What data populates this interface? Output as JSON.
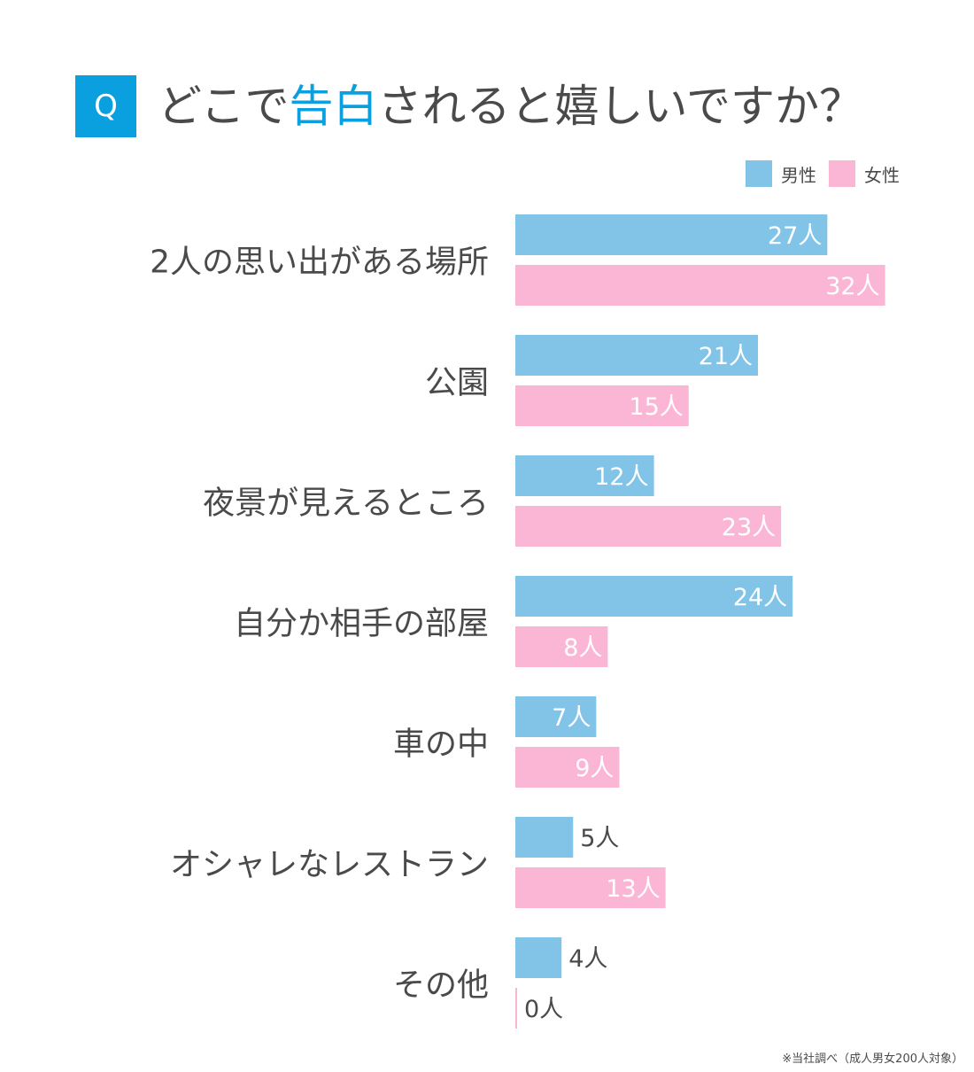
{
  "header": {
    "badge": "Q",
    "title_before": "どこで",
    "title_highlight": "告白",
    "title_after": "されると嬉しいですか？"
  },
  "legend": [
    {
      "label": "男性",
      "color": "#82c4e8"
    },
    {
      "label": "女性",
      "color": "#fbb6d6"
    }
  ],
  "footnote": "※当社調べ（成人男女200人対象）",
  "colors": {
    "accent": "#0aa0e0",
    "text": "#4a4a4a",
    "male": "#82c4e8",
    "female": "#fbb6d6"
  },
  "chart_data": {
    "type": "bar",
    "orientation": "horizontal",
    "unit": "人",
    "categories": [
      "2人の思い出がある場所",
      "公園",
      "夜景が見えるところ",
      "自分か相手の部屋",
      "車の中",
      "オシャレなレストラン",
      "その他"
    ],
    "series": [
      {
        "name": "男性",
        "color": "#82c4e8",
        "values": [
          27,
          21,
          12,
          24,
          7,
          5,
          4
        ]
      },
      {
        "name": "女性",
        "color": "#fbb6d6",
        "values": [
          32,
          15,
          23,
          8,
          9,
          13,
          0
        ]
      }
    ]
  }
}
